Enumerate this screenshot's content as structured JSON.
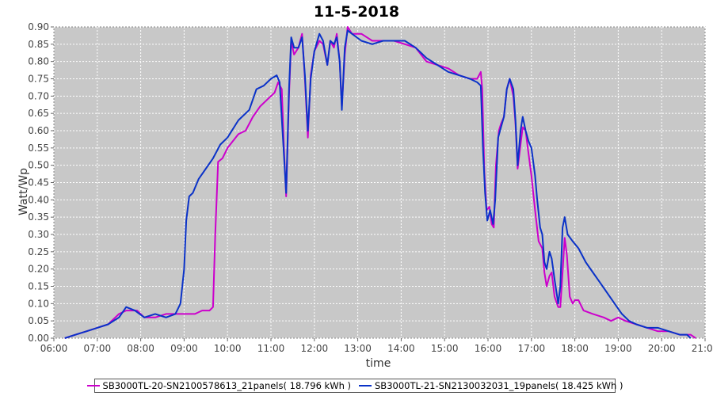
{
  "chart_data": {
    "type": "line",
    "title": "11-5-2018",
    "xlabel": "time",
    "ylabel": "Watt/Wp",
    "xlim": [
      "06:00",
      "21:00"
    ],
    "ylim": [
      0.0,
      0.9
    ],
    "x_ticks": [
      "06:00",
      "07:00",
      "08:00",
      "09:00",
      "10:00",
      "11:00",
      "12:00",
      "13:00",
      "14:00",
      "15:00",
      "16:00",
      "17:00",
      "18:00",
      "19:00",
      "20:00",
      "21:00"
    ],
    "y_ticks": [
      "0.00",
      "0.05",
      "0.10",
      "0.15",
      "0.20",
      "0.25",
      "0.30",
      "0.35",
      "0.40",
      "0.45",
      "0.50",
      "0.55",
      "0.60",
      "0.65",
      "0.70",
      "0.75",
      "0.80",
      "0.85",
      "0.90"
    ],
    "grid": true,
    "legend_position": "bottom",
    "series": [
      {
        "name": "SB3000TL-20-SN2100578613_21panels",
        "legend_label": "SB3000TL-20-SN2100578613_21panels( 18.796 kWh )",
        "color": "#cc00cc",
        "points": [
          [
            "06:15",
            0.0
          ],
          [
            "06:30",
            0.01
          ],
          [
            "06:45",
            0.02
          ],
          [
            "07:00",
            0.03
          ],
          [
            "07:15",
            0.04
          ],
          [
            "07:30",
            0.07
          ],
          [
            "07:40",
            0.08
          ],
          [
            "07:55",
            0.08
          ],
          [
            "08:05",
            0.06
          ],
          [
            "08:20",
            0.06
          ],
          [
            "08:35",
            0.07
          ],
          [
            "08:50",
            0.07
          ],
          [
            "09:00",
            0.07
          ],
          [
            "09:15",
            0.07
          ],
          [
            "09:25",
            0.08
          ],
          [
            "09:35",
            0.08
          ],
          [
            "09:40",
            0.09
          ],
          [
            "09:43",
            0.3
          ],
          [
            "09:47",
            0.51
          ],
          [
            "09:53",
            0.52
          ],
          [
            "10:00",
            0.55
          ],
          [
            "10:15",
            0.59
          ],
          [
            "10:25",
            0.6
          ],
          [
            "10:35",
            0.64
          ],
          [
            "10:45",
            0.67
          ],
          [
            "10:55",
            0.69
          ],
          [
            "11:05",
            0.71
          ],
          [
            "11:10",
            0.74
          ],
          [
            "11:15",
            0.72
          ],
          [
            "11:18",
            0.55
          ],
          [
            "11:21",
            0.41
          ],
          [
            "11:25",
            0.7
          ],
          [
            "11:28",
            0.86
          ],
          [
            "11:32",
            0.82
          ],
          [
            "11:38",
            0.84
          ],
          [
            "11:43",
            0.88
          ],
          [
            "11:47",
            0.75
          ],
          [
            "11:51",
            0.58
          ],
          [
            "11:55",
            0.76
          ],
          [
            "12:00",
            0.83
          ],
          [
            "12:07",
            0.86
          ],
          [
            "12:12",
            0.85
          ],
          [
            "12:18",
            0.79
          ],
          [
            "12:22",
            0.86
          ],
          [
            "12:27",
            0.84
          ],
          [
            "12:31",
            0.88
          ],
          [
            "12:35",
            0.8
          ],
          [
            "12:38",
            0.67
          ],
          [
            "12:42",
            0.82
          ],
          [
            "12:46",
            0.9
          ],
          [
            "12:52",
            0.88
          ],
          [
            "13:05",
            0.88
          ],
          [
            "13:20",
            0.86
          ],
          [
            "13:35",
            0.86
          ],
          [
            "13:50",
            0.86
          ],
          [
            "14:05",
            0.85
          ],
          [
            "14:20",
            0.84
          ],
          [
            "14:35",
            0.8
          ],
          [
            "14:50",
            0.79
          ],
          [
            "15:05",
            0.78
          ],
          [
            "15:20",
            0.76
          ],
          [
            "15:35",
            0.75
          ],
          [
            "15:45",
            0.75
          ],
          [
            "15:50",
            0.77
          ],
          [
            "15:52",
            0.72
          ],
          [
            "15:55",
            0.48
          ],
          [
            "15:58",
            0.37
          ],
          [
            "16:02",
            0.38
          ],
          [
            "16:05",
            0.33
          ],
          [
            "16:08",
            0.32
          ],
          [
            "16:11",
            0.5
          ],
          [
            "16:15",
            0.6
          ],
          [
            "16:18",
            0.62
          ],
          [
            "16:22",
            0.64
          ],
          [
            "16:26",
            0.72
          ],
          [
            "16:30",
            0.75
          ],
          [
            "16:35",
            0.7
          ],
          [
            "16:38",
            0.62
          ],
          [
            "16:41",
            0.49
          ],
          [
            "16:45",
            0.56
          ],
          [
            "16:48",
            0.61
          ],
          [
            "16:52",
            0.6
          ],
          [
            "16:55",
            0.55
          ],
          [
            "17:00",
            0.47
          ],
          [
            "17:05",
            0.37
          ],
          [
            "17:10",
            0.28
          ],
          [
            "17:15",
            0.26
          ],
          [
            "17:18",
            0.19
          ],
          [
            "17:21",
            0.15
          ],
          [
            "17:25",
            0.18
          ],
          [
            "17:28",
            0.19
          ],
          [
            "17:32",
            0.12
          ],
          [
            "17:37",
            0.09
          ],
          [
            "17:40",
            0.09
          ],
          [
            "17:43",
            0.19
          ],
          [
            "17:46",
            0.29
          ],
          [
            "17:49",
            0.24
          ],
          [
            "17:53",
            0.12
          ],
          [
            "17:57",
            0.1
          ],
          [
            "18:00",
            0.11
          ],
          [
            "18:05",
            0.11
          ],
          [
            "18:12",
            0.08
          ],
          [
            "18:25",
            0.07
          ],
          [
            "18:40",
            0.06
          ],
          [
            "18:50",
            0.05
          ],
          [
            "19:00",
            0.06
          ],
          [
            "19:10",
            0.05
          ],
          [
            "19:25",
            0.04
          ],
          [
            "19:40",
            0.03
          ],
          [
            "19:55",
            0.02
          ],
          [
            "20:10",
            0.02
          ],
          [
            "20:25",
            0.01
          ],
          [
            "20:40",
            0.01
          ],
          [
            "20:47",
            0.0
          ]
        ]
      },
      {
        "name": "SB3000TL-21-SN2130032031_19panels",
        "legend_label": "SB3000TL-21-SN2130032031_19panels( 18.425 kWh )",
        "color": "#0a32c8",
        "points": [
          [
            "06:15",
            0.0
          ],
          [
            "06:30",
            0.01
          ],
          [
            "06:45",
            0.02
          ],
          [
            "07:00",
            0.03
          ],
          [
            "07:15",
            0.04
          ],
          [
            "07:30",
            0.06
          ],
          [
            "07:40",
            0.09
          ],
          [
            "07:52",
            0.08
          ],
          [
            "08:05",
            0.06
          ],
          [
            "08:20",
            0.07
          ],
          [
            "08:35",
            0.06
          ],
          [
            "08:48",
            0.07
          ],
          [
            "08:55",
            0.1
          ],
          [
            "09:00",
            0.2
          ],
          [
            "09:03",
            0.34
          ],
          [
            "09:07",
            0.41
          ],
          [
            "09:12",
            0.42
          ],
          [
            "09:20",
            0.46
          ],
          [
            "09:30",
            0.49
          ],
          [
            "09:40",
            0.52
          ],
          [
            "09:50",
            0.56
          ],
          [
            "10:00",
            0.58
          ],
          [
            "10:15",
            0.63
          ],
          [
            "10:30",
            0.66
          ],
          [
            "10:40",
            0.72
          ],
          [
            "10:50",
            0.73
          ],
          [
            "11:00",
            0.75
          ],
          [
            "11:08",
            0.76
          ],
          [
            "11:12",
            0.74
          ],
          [
            "11:16",
            0.6
          ],
          [
            "11:21",
            0.42
          ],
          [
            "11:25",
            0.72
          ],
          [
            "11:28",
            0.87
          ],
          [
            "11:32",
            0.84
          ],
          [
            "11:38",
            0.84
          ],
          [
            "11:43",
            0.87
          ],
          [
            "11:47",
            0.76
          ],
          [
            "11:51",
            0.6
          ],
          [
            "11:55",
            0.75
          ],
          [
            "12:00",
            0.83
          ],
          [
            "12:07",
            0.88
          ],
          [
            "12:12",
            0.86
          ],
          [
            "12:18",
            0.79
          ],
          [
            "12:22",
            0.86
          ],
          [
            "12:27",
            0.85
          ],
          [
            "12:31",
            0.87
          ],
          [
            "12:35",
            0.8
          ],
          [
            "12:38",
            0.66
          ],
          [
            "12:42",
            0.84
          ],
          [
            "12:46",
            0.89
          ],
          [
            "12:52",
            0.88
          ],
          [
            "13:05",
            0.86
          ],
          [
            "13:20",
            0.85
          ],
          [
            "13:35",
            0.86
          ],
          [
            "13:50",
            0.86
          ],
          [
            "14:05",
            0.86
          ],
          [
            "14:20",
            0.84
          ],
          [
            "14:35",
            0.81
          ],
          [
            "14:50",
            0.79
          ],
          [
            "15:05",
            0.77
          ],
          [
            "15:20",
            0.76
          ],
          [
            "15:35",
            0.75
          ],
          [
            "15:45",
            0.74
          ],
          [
            "15:50",
            0.73
          ],
          [
            "15:53",
            0.55
          ],
          [
            "15:56",
            0.42
          ],
          [
            "15:59",
            0.34
          ],
          [
            "16:03",
            0.37
          ],
          [
            "16:07",
            0.33
          ],
          [
            "16:10",
            0.4
          ],
          [
            "16:14",
            0.58
          ],
          [
            "16:18",
            0.61
          ],
          [
            "16:22",
            0.64
          ],
          [
            "16:26",
            0.72
          ],
          [
            "16:30",
            0.75
          ],
          [
            "16:35",
            0.72
          ],
          [
            "16:38",
            0.63
          ],
          [
            "16:41",
            0.5
          ],
          [
            "16:45",
            0.6
          ],
          [
            "16:48",
            0.64
          ],
          [
            "16:52",
            0.6
          ],
          [
            "16:56",
            0.57
          ],
          [
            "17:00",
            0.55
          ],
          [
            "17:05",
            0.47
          ],
          [
            "17:08",
            0.4
          ],
          [
            "17:12",
            0.32
          ],
          [
            "17:15",
            0.3
          ],
          [
            "17:18",
            0.22
          ],
          [
            "17:21",
            0.2
          ],
          [
            "17:25",
            0.25
          ],
          [
            "17:28",
            0.23
          ],
          [
            "17:32",
            0.17
          ],
          [
            "17:37",
            0.1
          ],
          [
            "17:40",
            0.15
          ],
          [
            "17:43",
            0.32
          ],
          [
            "17:46",
            0.35
          ],
          [
            "17:50",
            0.3
          ],
          [
            "17:57",
            0.28
          ],
          [
            "18:05",
            0.26
          ],
          [
            "18:15",
            0.22
          ],
          [
            "18:25",
            0.19
          ],
          [
            "18:35",
            0.16
          ],
          [
            "18:45",
            0.13
          ],
          [
            "18:55",
            0.1
          ],
          [
            "19:05",
            0.07
          ],
          [
            "19:15",
            0.05
          ],
          [
            "19:25",
            0.04
          ],
          [
            "19:40",
            0.03
          ],
          [
            "19:55",
            0.03
          ],
          [
            "20:10",
            0.02
          ],
          [
            "20:25",
            0.01
          ],
          [
            "20:35",
            0.01
          ],
          [
            "20:40",
            0.0
          ]
        ]
      }
    ]
  }
}
